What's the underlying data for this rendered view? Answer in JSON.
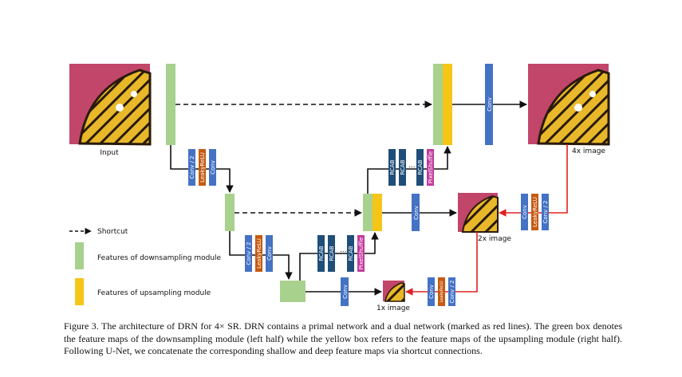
{
  "diagram": {
    "labels": {
      "input": "Input",
      "out_4x": "4x image",
      "out_2x": "2x image",
      "out_1x": "1x image"
    },
    "legend": {
      "shortcut": "Shortcut",
      "down": "Features of downsampling module",
      "up": "Features of upsampling module"
    },
    "blocks": {
      "conv2": "Conv / 2",
      "leaky": "LeakyReLU",
      "conv": "Conv",
      "rcab": "RCAB",
      "pixel": "PixelShuffle",
      "dots": "..."
    },
    "colors": {
      "green": "#a9d18e",
      "yellow": "#f5c518",
      "blue": "#4472c4",
      "orange": "#c55a11",
      "navy": "#1f4e79",
      "magenta": "#c23b9e",
      "red": "#e02020"
    }
  },
  "caption": {
    "text": "Figure 3.  The architecture of DRN for 4× SR. DRN contains a primal network and a dual network (marked as red lines). The green box denotes the feature maps of the downsampling module (left half) while the yellow box refers to the feature maps of the upsampling module (right half). Following U-Net, we concatenate the corresponding shallow and deep feature maps via shortcut connections."
  }
}
